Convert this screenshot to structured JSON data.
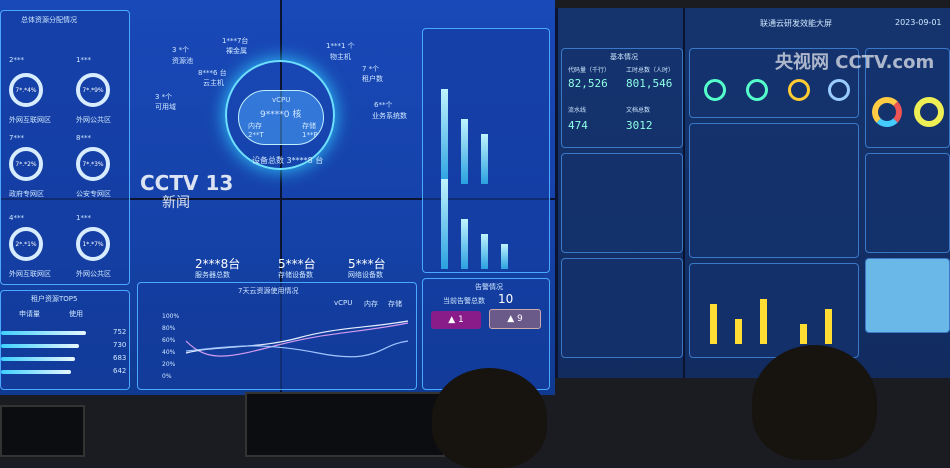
{
  "broadcast": {
    "channel_logo": "CCTV 13",
    "channel_sub": "新闻",
    "watermark": "央视网 CCTV.com"
  },
  "left_screen": {
    "resource_panel": {
      "title": "总体资源分配情况",
      "zones": [
        {
          "count": "2***",
          "ring": "7*.*4%",
          "label": "外网互联网区"
        },
        {
          "count": "1***",
          "ring": "7*.*9%",
          "label": "外网公共区"
        },
        {
          "count": "7***",
          "ring": "7*.*2%",
          "label": "政府专网区"
        },
        {
          "count": "8***",
          "ring": "7*.*3%",
          "label": "公安专网区"
        },
        {
          "count": "4***",
          "ring": "2*.*1%",
          "label": "外网互联网区"
        },
        {
          "count": "1***",
          "ring": "1*.*7%",
          "label": "外网公共区"
        }
      ]
    },
    "cloud": {
      "vcpu_label": "vCPU",
      "vcpu_value": "9****0 核",
      "mem_label": "内存",
      "mem_value": "2**T",
      "storage_label": "存储",
      "storage_value": "1**P",
      "total": "设备总数 3****8 台",
      "nodes": [
        {
          "v": "3 *个",
          "l": "可用域"
        },
        {
          "v": "3 *个",
          "l": "资源池"
        },
        {
          "v": "8***6 台",
          "l": "云主机"
        },
        {
          "v": "1***7台",
          "l": "裸金属"
        },
        {
          "v": "1***1 个",
          "l": "物主机"
        },
        {
          "v": "7 *个",
          "l": "租户数"
        },
        {
          "v": "6**个",
          "l": "业务系统数"
        }
      ],
      "stats": [
        {
          "v": "2***8台",
          "l": "服务器总数"
        },
        {
          "v": "5***台",
          "l": "存储设备数"
        },
        {
          "v": "5***台",
          "l": "网络设备数"
        }
      ]
    },
    "top5": {
      "title": "租户资源TOP5",
      "cols": [
        "申请量",
        "使用"
      ],
      "values": [
        "752",
        "730",
        "683",
        "642"
      ]
    },
    "usage": {
      "title": "7天云资源使用情况",
      "legend": [
        "vCPU",
        "内存",
        "存储"
      ],
      "yticks": [
        "100%",
        "80%",
        "60%",
        "40%",
        "20%",
        "0%"
      ]
    },
    "alarms": {
      "title": "告警情况",
      "count_label": "当前告警总数",
      "count": "10",
      "critical": "1",
      "major": "9"
    }
  },
  "right_screen": {
    "title": "联通云研发效能大屏",
    "date": "2023-09-01",
    "basic": {
      "title": "基本情况",
      "items": [
        {
          "l": "代码量（千行）",
          "v": "82,526"
        },
        {
          "l": "工时总数（人时）",
          "v": "801,546"
        },
        {
          "l": "流水线",
          "v": "474"
        },
        {
          "l": "文档总数",
          "v": "3012"
        }
      ]
    }
  },
  "colors": {
    "wall": "#1846b4",
    "accent": "#4aa8ff",
    "teal": "#8fffe6"
  }
}
